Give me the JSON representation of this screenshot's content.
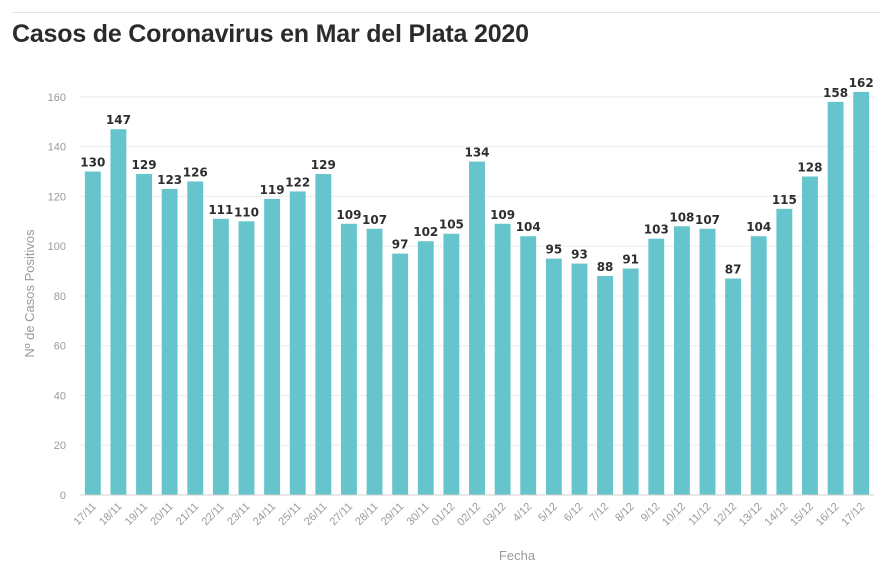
{
  "title": "Casos de Coronavirus en Mar del Plata 2020",
  "chart_data": {
    "type": "bar",
    "title": "Casos de Coronavirus en Mar del Plata 2020",
    "xlabel": "Fecha",
    "ylabel": "Nº de Casos Positivos",
    "ylim": [
      0,
      170
    ],
    "yticks": [
      0,
      20,
      40,
      60,
      80,
      100,
      120,
      140,
      160
    ],
    "grid": true,
    "bar_color": "#66c4cc",
    "categories": [
      "17/11",
      "18/11",
      "19/11",
      "20/11",
      "21/11",
      "22/11",
      "23/11",
      "24/11",
      "25/11",
      "26/11",
      "27/11",
      "28/11",
      "29/11",
      "30/11",
      "01/12",
      "02/12",
      "03/12",
      "4/12",
      "5/12",
      "6/12",
      "7/12",
      "8/12",
      "9/12",
      "10/12",
      "11/12",
      "12/12",
      "13/12",
      "14/12",
      "15/12",
      "16/12",
      "17/12"
    ],
    "values": [
      130,
      147,
      129,
      123,
      126,
      111,
      110,
      119,
      122,
      129,
      109,
      107,
      97,
      102,
      105,
      134,
      109,
      104,
      95,
      93,
      88,
      91,
      103,
      108,
      107,
      87,
      104,
      115,
      128,
      158,
      162
    ]
  }
}
